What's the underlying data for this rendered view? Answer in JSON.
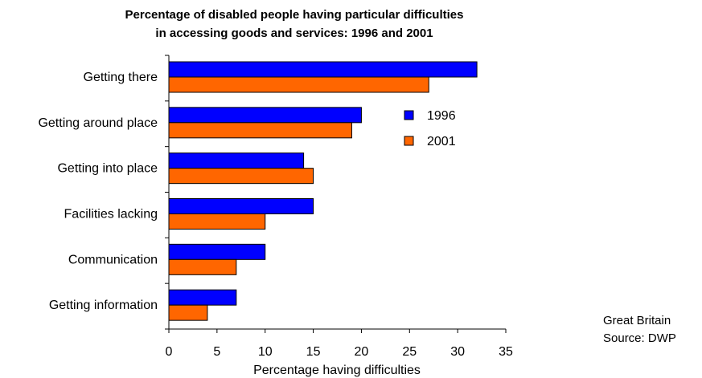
{
  "chart_data": {
    "type": "bar",
    "orientation": "horizontal",
    "title_lines": [
      "Percentage of disabled people having particular difficulties",
      "in accessing goods and services: 1996 and 2001"
    ],
    "categories": [
      "Getting there",
      "Getting around place",
      "Getting into place",
      "Facilities lacking",
      "Communication",
      "Getting information"
    ],
    "series": [
      {
        "name": "1996",
        "color": "#0000ff",
        "values": [
          32,
          20,
          14,
          15,
          10,
          7
        ]
      },
      {
        "name": "2001",
        "color": "#ff6600",
        "values": [
          27,
          19,
          15,
          10,
          7,
          4
        ]
      }
    ],
    "xlabel": "Percentage having difficulties",
    "ylabel": "",
    "xlim": [
      0,
      35
    ],
    "xticks": [
      "0",
      "5",
      "10",
      "15",
      "20",
      "25",
      "30",
      "35"
    ],
    "grid": false,
    "legend_position": "right-upper",
    "notes": [
      "Great Britain",
      "Source: DWP"
    ]
  }
}
